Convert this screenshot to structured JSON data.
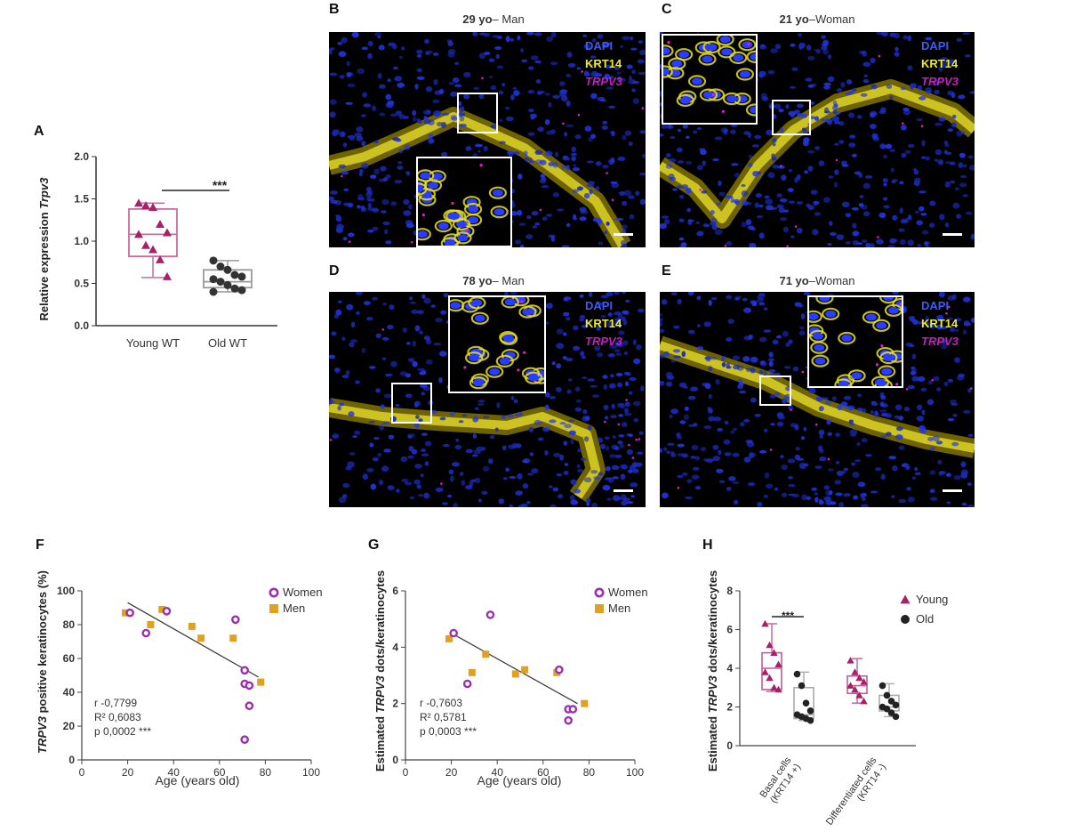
{
  "panel_A": {
    "letter": "A",
    "ylabel_prefix": "Relative expression ",
    "ylabel_gene": "Trpv3",
    "significance": "***",
    "colors": {
      "young": "#a8206a",
      "young_box": "#cc6a9a",
      "old": "#333333",
      "old_box": "#999999"
    },
    "chart_data": {
      "type": "box",
      "categories": [
        "Young WT",
        "Old WT"
      ],
      "ylim": [
        0,
        2.0
      ],
      "yticks": [
        "0.0",
        "0.5",
        "1.0",
        "1.5",
        "2.0"
      ],
      "series": [
        {
          "values": [
            1.45,
            1.42,
            1.4,
            1.2,
            1.1,
            1.08,
            0.95,
            0.9,
            0.78,
            0.58
          ],
          "box": {
            "min": 0.57,
            "q1": 0.82,
            "median": 1.08,
            "q3": 1.38,
            "max": 1.45
          }
        },
        {
          "values": [
            0.77,
            0.7,
            0.66,
            0.6,
            0.58,
            0.55,
            0.52,
            0.48,
            0.44,
            0.42,
            0.4
          ],
          "box": {
            "min": 0.4,
            "q1": 0.45,
            "median": 0.52,
            "q3": 0.66,
            "max": 0.77
          }
        }
      ]
    }
  },
  "panels_micro": [
    {
      "letter": "B",
      "age": "29 yo",
      "sex": "– Man"
    },
    {
      "letter": "C",
      "age": "21 yo",
      "sex": "–Woman"
    },
    {
      "letter": "D",
      "age": "78 yo",
      "sex": "– Man"
    },
    {
      "letter": "E",
      "age": "71 yo",
      "sex": "–Woman"
    }
  ],
  "micro_legend": {
    "dapi": "DAPI",
    "krt14": "KRT14",
    "trpv3": "TRPV3"
  },
  "panel_F": {
    "letter": "F",
    "ylabel_gene": "TRPV3",
    "ylabel_rest": " positive keratinocytes (%)",
    "xlabel": "Age (years old)",
    "legend": [
      "Women",
      "Men"
    ],
    "stats": {
      "r": "r  -0,7799",
      "r2": "R² 0,6083",
      "p": "p  0,0002 ***"
    },
    "chart_data": {
      "type": "scatter",
      "xlim": [
        0,
        100
      ],
      "ylim": [
        0,
        100
      ],
      "xticks": [
        "0",
        "20",
        "40",
        "60",
        "80",
        "100"
      ],
      "yticks": [
        "0",
        "20",
        "40",
        "60",
        "80",
        "100"
      ],
      "series": [
        {
          "name": "Women",
          "points": [
            [
              21,
              87
            ],
            [
              28,
              75
            ],
            [
              37,
              88
            ],
            [
              67,
              83
            ],
            [
              71,
              53
            ],
            [
              71,
              45
            ],
            [
              73,
              44
            ],
            [
              73,
              32
            ],
            [
              71,
              12
            ]
          ]
        },
        {
          "name": "Men",
          "points": [
            [
              19,
              87
            ],
            [
              30,
              80
            ],
            [
              35,
              89
            ],
            [
              48,
              79
            ],
            [
              52,
              72
            ],
            [
              66,
              72
            ],
            [
              78,
              46
            ]
          ]
        }
      ],
      "fit": [
        [
          20,
          93
        ],
        [
          77,
          49
        ]
      ]
    }
  },
  "panel_G": {
    "letter": "G",
    "ylabel_prefix": "Estimated ",
    "ylabel_gene": "TRPV3",
    "ylabel_rest": " dots/keratinocytes",
    "xlabel": "Age (years old)",
    "legend": [
      "Women",
      "Men"
    ],
    "stats": {
      "r": "r  -0,7603",
      "r2": "R² 0,5781",
      "p": "p  0,0003 ***"
    },
    "chart_data": {
      "type": "scatter",
      "xlim": [
        0,
        100
      ],
      "ylim": [
        0,
        6
      ],
      "xticks": [
        "0",
        "20",
        "40",
        "60",
        "80",
        "100"
      ],
      "yticks": [
        "0",
        "2",
        "4",
        "6"
      ],
      "series": [
        {
          "name": "Women",
          "points": [
            [
              21,
              4.5
            ],
            [
              27,
              2.7
            ],
            [
              37,
              5.15
            ],
            [
              67,
              3.2
            ],
            [
              71,
              1.8
            ],
            [
              73,
              1.8
            ],
            [
              71,
              1.4
            ]
          ]
        },
        {
          "name": "Men",
          "points": [
            [
              19,
              4.3
            ],
            [
              29,
              3.1
            ],
            [
              35,
              3.75
            ],
            [
              48,
              3.05
            ],
            [
              52,
              3.2
            ],
            [
              66,
              3.1
            ],
            [
              78,
              2.0
            ]
          ]
        }
      ],
      "fit": [
        [
          20,
          4.5
        ],
        [
          75,
          2.0
        ]
      ]
    }
  },
  "panel_H": {
    "letter": "H",
    "ylabel_prefix": "Estimated ",
    "ylabel_gene": "TRPV3",
    "ylabel_rest": " dots/keratinocytes",
    "legend": [
      "Young",
      "Old"
    ],
    "significance": "***",
    "category_lines": [
      [
        "Basal cells",
        "(KRT14 +)"
      ],
      [
        "Differentiated cells",
        "(KRT14 -)"
      ]
    ],
    "chart_data": {
      "type": "box",
      "ylim": [
        0,
        8
      ],
      "yticks": [
        "0",
        "2",
        "4",
        "6",
        "8"
      ],
      "groups": [
        {
          "young": {
            "values": [
              6.3,
              5.2,
              4.8,
              4.2,
              3.8,
              3.5,
              3.0,
              2.9
            ],
            "box": {
              "min": 2.8,
              "q1": 2.9,
              "median": 4.0,
              "q3": 4.8,
              "max": 6.3
            }
          },
          "old": {
            "values": [
              3.7,
              3.1,
              2.2,
              1.8,
              1.6,
              1.5,
              1.4,
              1.3
            ],
            "box": {
              "min": 1.3,
              "q1": 1.4,
              "median": 1.6,
              "q3": 3.0,
              "max": 3.8
            }
          }
        },
        {
          "young": {
            "values": [
              4.4,
              3.8,
              3.5,
              3.3,
              3.1,
              2.9,
              2.6,
              2.3
            ],
            "box": {
              "min": 2.2,
              "q1": 2.7,
              "median": 3.1,
              "q3": 3.6,
              "max": 4.5
            }
          },
          "old": {
            "values": [
              3.1,
              2.6,
              2.3,
              2.1,
              2.0,
              1.9,
              1.7,
              1.5
            ],
            "box": {
              "min": 1.5,
              "q1": 1.8,
              "median": 2.0,
              "q3": 2.6,
              "max": 3.2
            }
          }
        }
      ]
    }
  },
  "colors": {
    "women": "#9b2fae",
    "men": "#e0a020",
    "young": "#a8206a",
    "old": "#222222",
    "dapi": "#2a3cff",
    "krt14": "#f0e000"
  }
}
